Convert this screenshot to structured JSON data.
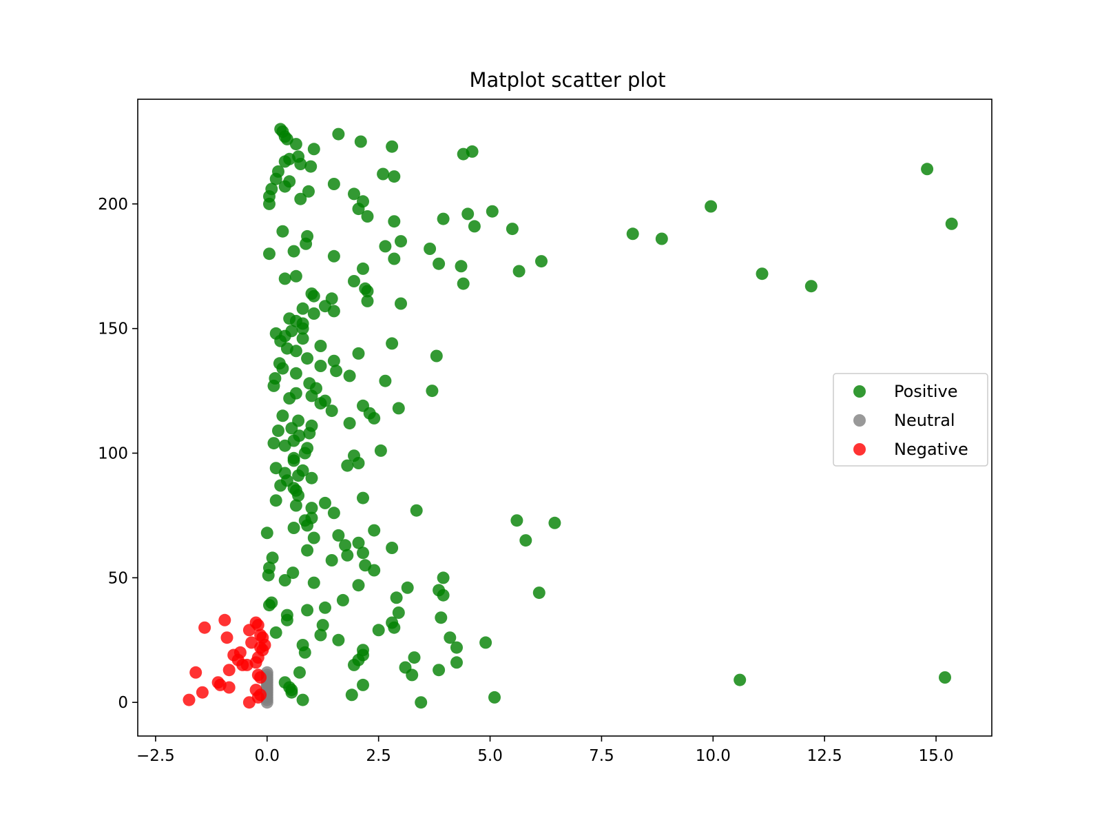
{
  "chart_data": {
    "type": "scatter",
    "title": "Matplot scatter plot",
    "xlabel": "",
    "ylabel": "",
    "xlim": [
      -2.9,
      16.25
    ],
    "ylim": [
      -13.5,
      242
    ],
    "xticks": [
      -2.5,
      0.0,
      2.5,
      5.0,
      7.5,
      10.0,
      12.5,
      15.0
    ],
    "xtick_labels": [
      "−2.5",
      "0.0",
      "2.5",
      "5.0",
      "7.5",
      "10.0",
      "12.5",
      "15.0"
    ],
    "yticks": [
      0,
      50,
      100,
      150,
      200
    ],
    "ytick_labels": [
      "0",
      "50",
      "100",
      "150",
      "200"
    ],
    "grid": false,
    "legend_position": "center-right",
    "series": [
      {
        "name": "Positive",
        "color": "#008000",
        "points": [
          [
            0.3,
            230
          ],
          [
            0.35,
            229
          ],
          [
            0.4,
            227
          ],
          [
            0.45,
            226
          ],
          [
            1.6,
            228
          ],
          [
            2.1,
            225
          ],
          [
            0.65,
            224
          ],
          [
            2.8,
            223
          ],
          [
            1.05,
            222
          ],
          [
            4.6,
            221
          ],
          [
            4.4,
            220
          ],
          [
            0.7,
            219
          ],
          [
            0.5,
            218
          ],
          [
            0.4,
            217
          ],
          [
            0.75,
            216
          ],
          [
            0.98,
            215
          ],
          [
            14.8,
            214
          ],
          [
            0.25,
            213
          ],
          [
            2.6,
            212
          ],
          [
            2.85,
            211
          ],
          [
            0.2,
            210
          ],
          [
            0.5,
            209
          ],
          [
            1.5,
            208
          ],
          [
            0.4,
            207
          ],
          [
            0.1,
            206
          ],
          [
            0.93,
            205
          ],
          [
            1.95,
            204
          ],
          [
            0.05,
            203
          ],
          [
            0.75,
            202
          ],
          [
            2.15,
            201
          ],
          [
            0.05,
            200
          ],
          [
            9.95,
            199
          ],
          [
            2.05,
            198
          ],
          [
            5.05,
            197
          ],
          [
            4.5,
            196
          ],
          [
            2.25,
            195
          ],
          [
            3.95,
            194
          ],
          [
            2.85,
            193
          ],
          [
            15.35,
            192
          ],
          [
            4.65,
            191
          ],
          [
            5.5,
            190
          ],
          [
            0.35,
            189
          ],
          [
            8.2,
            188
          ],
          [
            0.9,
            187
          ],
          [
            8.85,
            186
          ],
          [
            3.0,
            185
          ],
          [
            0.87,
            184
          ],
          [
            2.65,
            183
          ],
          [
            3.65,
            182
          ],
          [
            0.6,
            181
          ],
          [
            0.05,
            180
          ],
          [
            1.5,
            179
          ],
          [
            2.85,
            178
          ],
          [
            6.15,
            177
          ],
          [
            3.85,
            176
          ],
          [
            4.35,
            175
          ],
          [
            2.15,
            174
          ],
          [
            5.65,
            173
          ],
          [
            11.1,
            172
          ],
          [
            0.65,
            171
          ],
          [
            0.4,
            170
          ],
          [
            1.95,
            169
          ],
          [
            4.4,
            168
          ],
          [
            12.2,
            167
          ],
          [
            2.2,
            166
          ],
          [
            2.25,
            165
          ],
          [
            1.0,
            164
          ],
          [
            1.05,
            163
          ],
          [
            1.45,
            162
          ],
          [
            2.25,
            161
          ],
          [
            3.0,
            160
          ],
          [
            1.3,
            159
          ],
          [
            0.8,
            158
          ],
          [
            1.5,
            157
          ],
          [
            1.05,
            156
          ],
          [
            0.5,
            154
          ],
          [
            0.65,
            153
          ],
          [
            0.8,
            152
          ],
          [
            0.8,
            150
          ],
          [
            0.55,
            149
          ],
          [
            0.2,
            148
          ],
          [
            0.4,
            147
          ],
          [
            0.8,
            146
          ],
          [
            0.3,
            145
          ],
          [
            2.8,
            144
          ],
          [
            1.2,
            143
          ],
          [
            0.45,
            142
          ],
          [
            0.65,
            141
          ],
          [
            2.05,
            140
          ],
          [
            3.8,
            139
          ],
          [
            0.9,
            138
          ],
          [
            1.5,
            137
          ],
          [
            0.28,
            136
          ],
          [
            1.2,
            135
          ],
          [
            0.35,
            134
          ],
          [
            1.55,
            133
          ],
          [
            0.65,
            132
          ],
          [
            1.85,
            131
          ],
          [
            0.18,
            130
          ],
          [
            2.65,
            129
          ],
          [
            0.95,
            128
          ],
          [
            0.15,
            127
          ],
          [
            1.1,
            126
          ],
          [
            3.7,
            125
          ],
          [
            0.65,
            124
          ],
          [
            1.0,
            123
          ],
          [
            0.5,
            122
          ],
          [
            1.3,
            121
          ],
          [
            1.2,
            120
          ],
          [
            2.15,
            119
          ],
          [
            2.95,
            118
          ],
          [
            1.45,
            117
          ],
          [
            2.3,
            116
          ],
          [
            0.35,
            115
          ],
          [
            2.4,
            114
          ],
          [
            0.7,
            113
          ],
          [
            1.85,
            112
          ],
          [
            1.0,
            111
          ],
          [
            0.55,
            110
          ],
          [
            0.25,
            109
          ],
          [
            0.95,
            108
          ],
          [
            0.72,
            107
          ],
          [
            0.6,
            105
          ],
          [
            0.15,
            104
          ],
          [
            0.4,
            103
          ],
          [
            0.9,
            102
          ],
          [
            2.55,
            101
          ],
          [
            0.85,
            100
          ],
          [
            1.95,
            99
          ],
          [
            0.6,
            98
          ],
          [
            0.6,
            97
          ],
          [
            2.05,
            96
          ],
          [
            1.8,
            95
          ],
          [
            0.2,
            94
          ],
          [
            0.8,
            93
          ],
          [
            0.4,
            92
          ],
          [
            0.7,
            91
          ],
          [
            1.0,
            90
          ],
          [
            0.45,
            89
          ],
          [
            0.3,
            87
          ],
          [
            0.6,
            86
          ],
          [
            0.65,
            85
          ],
          [
            0.7,
            83
          ],
          [
            2.15,
            82
          ],
          [
            0.2,
            81
          ],
          [
            1.3,
            80
          ],
          [
            0.65,
            79
          ],
          [
            1.0,
            78
          ],
          [
            3.35,
            77
          ],
          [
            1.5,
            76
          ],
          [
            1.0,
            74
          ],
          [
            0.85,
            73
          ],
          [
            5.6,
            73
          ],
          [
            6.45,
            72
          ],
          [
            0.9,
            71
          ],
          [
            0.6,
            70
          ],
          [
            2.4,
            69
          ],
          [
            0.0,
            68
          ],
          [
            1.6,
            67
          ],
          [
            1.05,
            66
          ],
          [
            5.8,
            65
          ],
          [
            2.05,
            64
          ],
          [
            1.75,
            63
          ],
          [
            2.8,
            62
          ],
          [
            0.9,
            61
          ],
          [
            2.15,
            60
          ],
          [
            1.8,
            59
          ],
          [
            0.12,
            58
          ],
          [
            1.45,
            57
          ],
          [
            2.2,
            55
          ],
          [
            0.05,
            54
          ],
          [
            2.4,
            53
          ],
          [
            0.58,
            52
          ],
          [
            0.03,
            51
          ],
          [
            3.95,
            50
          ],
          [
            0.4,
            49
          ],
          [
            1.05,
            48
          ],
          [
            2.05,
            47
          ],
          [
            3.15,
            46
          ],
          [
            3.85,
            45
          ],
          [
            6.1,
            44
          ],
          [
            3.95,
            43
          ],
          [
            2.9,
            42
          ],
          [
            1.7,
            41
          ],
          [
            0.1,
            40
          ],
          [
            0.05,
            39
          ],
          [
            1.3,
            38
          ],
          [
            0.9,
            37
          ],
          [
            2.95,
            36
          ],
          [
            0.45,
            35
          ],
          [
            3.9,
            34
          ],
          [
            0.45,
            33
          ],
          [
            2.8,
            32
          ],
          [
            1.25,
            31
          ],
          [
            2.85,
            30
          ],
          [
            2.5,
            29
          ],
          [
            0.2,
            28
          ],
          [
            1.2,
            27
          ],
          [
            4.1,
            26
          ],
          [
            1.6,
            25
          ],
          [
            4.9,
            24
          ],
          [
            0.8,
            23
          ],
          [
            4.25,
            22
          ],
          [
            2.15,
            21
          ],
          [
            0.85,
            20
          ],
          [
            2.15,
            19
          ],
          [
            3.3,
            18
          ],
          [
            2.05,
            17
          ],
          [
            4.25,
            16
          ],
          [
            1.95,
            15
          ],
          [
            3.1,
            14
          ],
          [
            3.85,
            13
          ],
          [
            0.73,
            12
          ],
          [
            3.25,
            11
          ],
          [
            10.6,
            9
          ],
          [
            15.2,
            10
          ],
          [
            0.4,
            8
          ],
          [
            2.15,
            7
          ],
          [
            0.5,
            6
          ],
          [
            0.55,
            5
          ],
          [
            0.55,
            4
          ],
          [
            1.9,
            3
          ],
          [
            5.1,
            2
          ],
          [
            0.8,
            1
          ],
          [
            3.45,
            0
          ]
        ]
      },
      {
        "name": "Neutral",
        "color": "#808080",
        "points": [
          [
            0.0,
            0
          ],
          [
            0.0,
            1
          ],
          [
            0.0,
            2
          ],
          [
            0.0,
            3
          ],
          [
            0.0,
            4
          ],
          [
            0.0,
            5
          ],
          [
            0.0,
            6
          ],
          [
            0.0,
            7
          ],
          [
            0.0,
            8
          ],
          [
            0.0,
            9
          ],
          [
            0.0,
            10
          ],
          [
            0.0,
            11
          ],
          [
            0.0,
            12
          ]
        ]
      },
      {
        "name": "Negative",
        "color": "#ff0000",
        "points": [
          [
            -0.95,
            33
          ],
          [
            -0.25,
            32
          ],
          [
            -0.2,
            31
          ],
          [
            -1.4,
            30
          ],
          [
            -0.4,
            29
          ],
          [
            -0.15,
            27
          ],
          [
            -0.9,
            26
          ],
          [
            -0.1,
            26
          ],
          [
            -0.35,
            24
          ],
          [
            -0.05,
            23
          ],
          [
            -0.15,
            22
          ],
          [
            -0.1,
            21
          ],
          [
            -0.6,
            20
          ],
          [
            -0.75,
            19
          ],
          [
            -0.2,
            18
          ],
          [
            -0.65,
            17
          ],
          [
            -0.25,
            16
          ],
          [
            -0.55,
            15
          ],
          [
            -0.45,
            15
          ],
          [
            -0.85,
            13
          ],
          [
            -1.6,
            12
          ],
          [
            -0.2,
            11
          ],
          [
            -0.15,
            10
          ],
          [
            -1.1,
            8
          ],
          [
            -1.05,
            7
          ],
          [
            -0.85,
            6
          ],
          [
            -0.25,
            5
          ],
          [
            -1.45,
            4
          ],
          [
            -0.15,
            3
          ],
          [
            -0.2,
            2
          ],
          [
            -1.75,
            1
          ],
          [
            -0.4,
            0
          ]
        ]
      }
    ]
  }
}
